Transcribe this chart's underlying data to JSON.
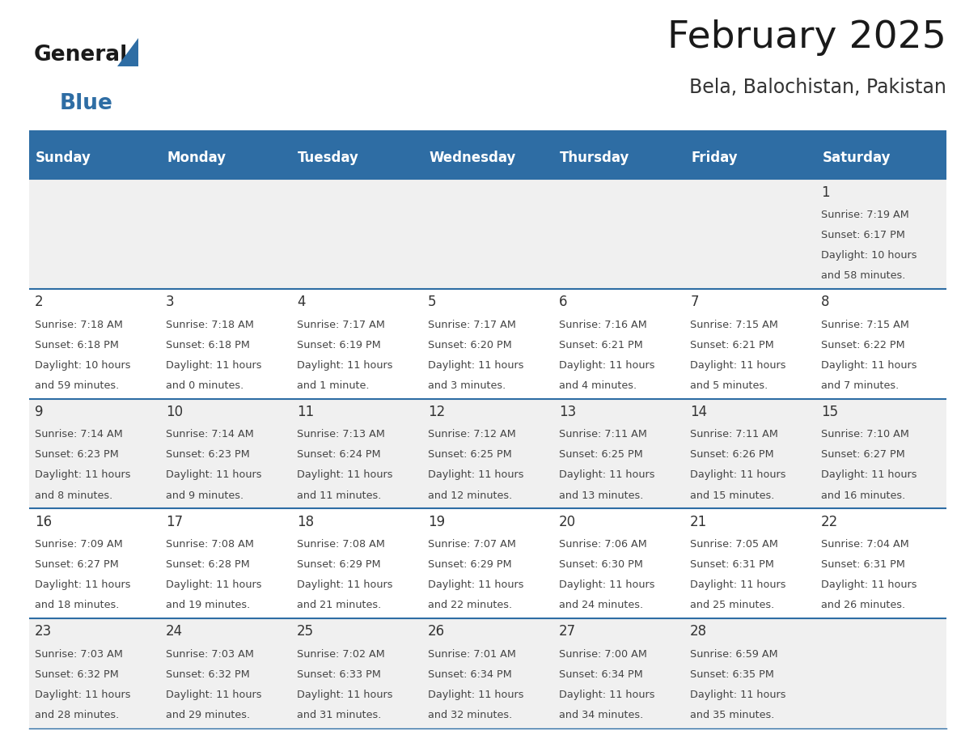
{
  "title": "February 2025",
  "subtitle": "Bela, Balochistan, Pakistan",
  "days_of_week": [
    "Sunday",
    "Monday",
    "Tuesday",
    "Wednesday",
    "Thursday",
    "Friday",
    "Saturday"
  ],
  "header_bg": "#2E6DA4",
  "header_text": "#FFFFFF",
  "cell_bg_odd": "#F0F0F0",
  "cell_bg_even": "#FFFFFF",
  "text_color": "#444444",
  "date_color": "#333333",
  "line_color": "#2E6DA4",
  "logo_general_color": "#1a1a1a",
  "logo_blue_color": "#2E6DA4",
  "title_color": "#1a1a1a",
  "subtitle_color": "#333333",
  "calendar": [
    [
      null,
      null,
      null,
      null,
      null,
      null,
      {
        "day": "1",
        "sunrise": "7:19 AM",
        "sunset": "6:17 PM",
        "daylight_l1": "Daylight: 10 hours",
        "daylight_l2": "and 58 minutes."
      }
    ],
    [
      {
        "day": "2",
        "sunrise": "7:18 AM",
        "sunset": "6:18 PM",
        "daylight_l1": "Daylight: 10 hours",
        "daylight_l2": "and 59 minutes."
      },
      {
        "day": "3",
        "sunrise": "7:18 AM",
        "sunset": "6:18 PM",
        "daylight_l1": "Daylight: 11 hours",
        "daylight_l2": "and 0 minutes."
      },
      {
        "day": "4",
        "sunrise": "7:17 AM",
        "sunset": "6:19 PM",
        "daylight_l1": "Daylight: 11 hours",
        "daylight_l2": "and 1 minute."
      },
      {
        "day": "5",
        "sunrise": "7:17 AM",
        "sunset": "6:20 PM",
        "daylight_l1": "Daylight: 11 hours",
        "daylight_l2": "and 3 minutes."
      },
      {
        "day": "6",
        "sunrise": "7:16 AM",
        "sunset": "6:21 PM",
        "daylight_l1": "Daylight: 11 hours",
        "daylight_l2": "and 4 minutes."
      },
      {
        "day": "7",
        "sunrise": "7:15 AM",
        "sunset": "6:21 PM",
        "daylight_l1": "Daylight: 11 hours",
        "daylight_l2": "and 5 minutes."
      },
      {
        "day": "8",
        "sunrise": "7:15 AM",
        "sunset": "6:22 PM",
        "daylight_l1": "Daylight: 11 hours",
        "daylight_l2": "and 7 minutes."
      }
    ],
    [
      {
        "day": "9",
        "sunrise": "7:14 AM",
        "sunset": "6:23 PM",
        "daylight_l1": "Daylight: 11 hours",
        "daylight_l2": "and 8 minutes."
      },
      {
        "day": "10",
        "sunrise": "7:14 AM",
        "sunset": "6:23 PM",
        "daylight_l1": "Daylight: 11 hours",
        "daylight_l2": "and 9 minutes."
      },
      {
        "day": "11",
        "sunrise": "7:13 AM",
        "sunset": "6:24 PM",
        "daylight_l1": "Daylight: 11 hours",
        "daylight_l2": "and 11 minutes."
      },
      {
        "day": "12",
        "sunrise": "7:12 AM",
        "sunset": "6:25 PM",
        "daylight_l1": "Daylight: 11 hours",
        "daylight_l2": "and 12 minutes."
      },
      {
        "day": "13",
        "sunrise": "7:11 AM",
        "sunset": "6:25 PM",
        "daylight_l1": "Daylight: 11 hours",
        "daylight_l2": "and 13 minutes."
      },
      {
        "day": "14",
        "sunrise": "7:11 AM",
        "sunset": "6:26 PM",
        "daylight_l1": "Daylight: 11 hours",
        "daylight_l2": "and 15 minutes."
      },
      {
        "day": "15",
        "sunrise": "7:10 AM",
        "sunset": "6:27 PM",
        "daylight_l1": "Daylight: 11 hours",
        "daylight_l2": "and 16 minutes."
      }
    ],
    [
      {
        "day": "16",
        "sunrise": "7:09 AM",
        "sunset": "6:27 PM",
        "daylight_l1": "Daylight: 11 hours",
        "daylight_l2": "and 18 minutes."
      },
      {
        "day": "17",
        "sunrise": "7:08 AM",
        "sunset": "6:28 PM",
        "daylight_l1": "Daylight: 11 hours",
        "daylight_l2": "and 19 minutes."
      },
      {
        "day": "18",
        "sunrise": "7:08 AM",
        "sunset": "6:29 PM",
        "daylight_l1": "Daylight: 11 hours",
        "daylight_l2": "and 21 minutes."
      },
      {
        "day": "19",
        "sunrise": "7:07 AM",
        "sunset": "6:29 PM",
        "daylight_l1": "Daylight: 11 hours",
        "daylight_l2": "and 22 minutes."
      },
      {
        "day": "20",
        "sunrise": "7:06 AM",
        "sunset": "6:30 PM",
        "daylight_l1": "Daylight: 11 hours",
        "daylight_l2": "and 24 minutes."
      },
      {
        "day": "21",
        "sunrise": "7:05 AM",
        "sunset": "6:31 PM",
        "daylight_l1": "Daylight: 11 hours",
        "daylight_l2": "and 25 minutes."
      },
      {
        "day": "22",
        "sunrise": "7:04 AM",
        "sunset": "6:31 PM",
        "daylight_l1": "Daylight: 11 hours",
        "daylight_l2": "and 26 minutes."
      }
    ],
    [
      {
        "day": "23",
        "sunrise": "7:03 AM",
        "sunset": "6:32 PM",
        "daylight_l1": "Daylight: 11 hours",
        "daylight_l2": "and 28 minutes."
      },
      {
        "day": "24",
        "sunrise": "7:03 AM",
        "sunset": "6:32 PM",
        "daylight_l1": "Daylight: 11 hours",
        "daylight_l2": "and 29 minutes."
      },
      {
        "day": "25",
        "sunrise": "7:02 AM",
        "sunset": "6:33 PM",
        "daylight_l1": "Daylight: 11 hours",
        "daylight_l2": "and 31 minutes."
      },
      {
        "day": "26",
        "sunrise": "7:01 AM",
        "sunset": "6:34 PM",
        "daylight_l1": "Daylight: 11 hours",
        "daylight_l2": "and 32 minutes."
      },
      {
        "day": "27",
        "sunrise": "7:00 AM",
        "sunset": "6:34 PM",
        "daylight_l1": "Daylight: 11 hours",
        "daylight_l2": "and 34 minutes."
      },
      {
        "day": "28",
        "sunrise": "6:59 AM",
        "sunset": "6:35 PM",
        "daylight_l1": "Daylight: 11 hours",
        "daylight_l2": "and 35 minutes."
      },
      null
    ]
  ],
  "figsize": [
    11.88,
    9.18
  ],
  "dpi": 100
}
